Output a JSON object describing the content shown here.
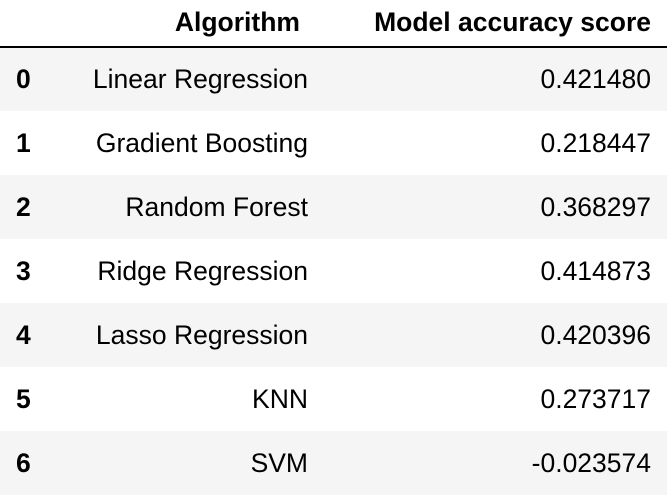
{
  "table": {
    "columns": [
      "",
      "Algorithm",
      "Model accuracy score"
    ],
    "rows": [
      {
        "index": "0",
        "algorithm": "Linear Regression",
        "score": "0.421480"
      },
      {
        "index": "1",
        "algorithm": "Gradient Boosting",
        "score": "0.218447"
      },
      {
        "index": "2",
        "algorithm": "Random Forest",
        "score": "0.368297"
      },
      {
        "index": "3",
        "algorithm": "Ridge Regression",
        "score": "0.414873"
      },
      {
        "index": "4",
        "algorithm": "Lasso Regression",
        "score": "0.420396"
      },
      {
        "index": "5",
        "algorithm": "KNN",
        "score": "0.273717"
      },
      {
        "index": "6",
        "algorithm": "SVM",
        "score": "-0.023574"
      }
    ]
  },
  "colors": {
    "header_rule": "#000000",
    "stripe": "#f5f5f5",
    "background": "#ffffff",
    "text": "#000000"
  }
}
